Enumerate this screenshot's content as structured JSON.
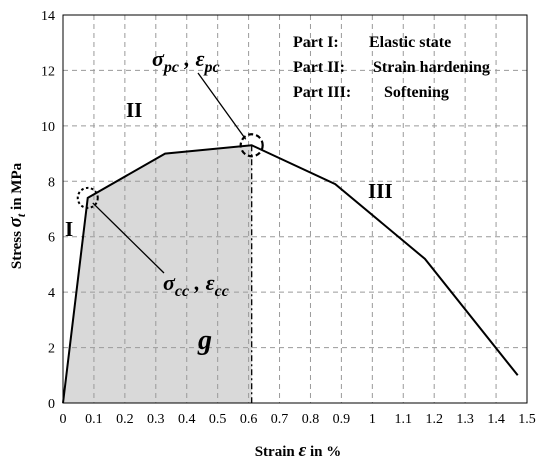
{
  "chart_data": {
    "type": "line",
    "xlabel": "Strain ε in %",
    "ylabel": "Stress σt in MPa",
    "xlim": [
      0,
      1.5
    ],
    "ylim": [
      0,
      14
    ],
    "x_ticks": [
      "0",
      "0.1",
      "0.2",
      "0.3",
      "0.4",
      "0.5",
      "0.6",
      "0.7",
      "0.8",
      "0.9",
      "1",
      "1.1",
      "1.2",
      "1.3",
      "1.4",
      "1.5"
    ],
    "y_ticks": [
      "0",
      "2",
      "4",
      "6",
      "8",
      "10",
      "12",
      "14"
    ],
    "grid": true,
    "series": [
      {
        "x": [
          0,
          0.08,
          0.33,
          0.61,
          0.88,
          1.17,
          1.47
        ],
        "y": [
          0,
          7.4,
          9.0,
          9.3,
          7.9,
          5.2,
          1.0
        ]
      }
    ],
    "shaded_area": {
      "x_from": 0,
      "x_to": 0.61
    },
    "annotations": {
      "cc_point": {
        "x": 0.08,
        "y": 7.4,
        "label": "σcc , εcc"
      },
      "pc_point": {
        "x": 0.61,
        "y": 9.3,
        "label": "σpc , εpc"
      },
      "region_I": "I",
      "region_II": "II",
      "region_III": "III",
      "area_label": "g"
    },
    "legend_lines": [
      {
        "part": "Part I:",
        "desc": "Elastic state"
      },
      {
        "part": "Part II:",
        "desc": "Strain hardening"
      },
      {
        "part": "Part III:",
        "desc": "Softening"
      }
    ]
  }
}
